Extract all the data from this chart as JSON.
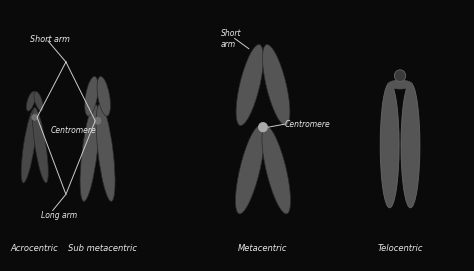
{
  "background_color": "#0a0a0a",
  "text_color": "#e8e8e8",
  "chromosome_color": "#484848",
  "chromosome_edge_color": "#2a2a2a",
  "chromosome_color2": "#555555",
  "labels": {
    "acrocentric": "Acrocentric",
    "submetacentric": "Sub metacentric",
    "metacentric": "Metacentric",
    "telocentric": "Telocentric"
  },
  "annotations": {
    "short_arm": "Short arm",
    "long_arm": "Long arm",
    "centromere1": "Centromere",
    "centromere2": "Centromere",
    "short_arm2": "Short\narm"
  },
  "figsize": [
    4.74,
    2.71
  ],
  "dpi": 100
}
